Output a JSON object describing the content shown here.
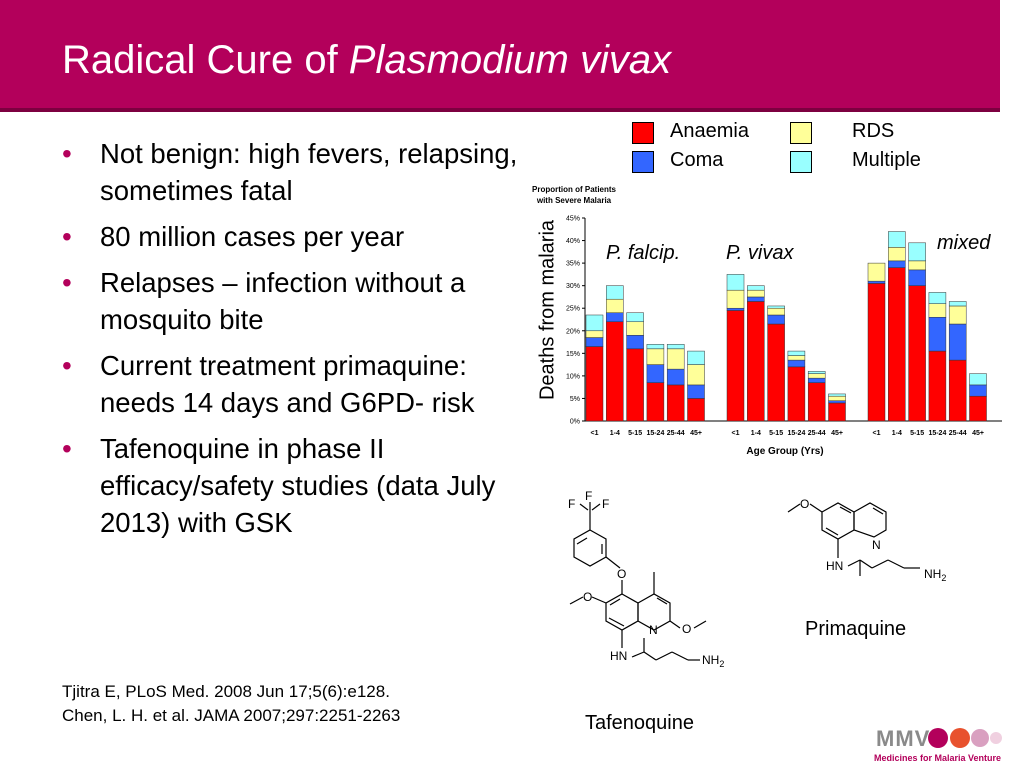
{
  "slide": {
    "title_plain": "Radical Cure of ",
    "title_italic": "Plasmodium vivax"
  },
  "bullets": [
    "Not benign: high fevers, relapsing, sometimes fatal",
    "80 million cases per year",
    "Relapses – infection without a mosquito bite",
    "Current treatment primaquine: needs 14 days and G6PD- risk",
    "Tafenoquine in phase II efficacy/safety studies (data July 2013) with GSK"
  ],
  "references": [
    "Tjitra E, PLoS Med. 2008 Jun 17;5(6):e128.",
    "Chen, L. H. et al. JAMA 2007;297:2251-2263"
  ],
  "legend": [
    {
      "label": "Anaemia",
      "color": "#ff0000"
    },
    {
      "label": "RDS",
      "color": "#ffff99"
    },
    {
      "label": "Coma",
      "color": "#3366ff"
    },
    {
      "label": "Multiple",
      "color": "#99ffff"
    }
  ],
  "chart_side_label": "Deaths from malaria",
  "chart_data": {
    "type": "bar",
    "stacked": true,
    "title": "Proportion of Patients with Severe Malaria",
    "xlabel": "Age Group (Yrs)",
    "ylabel": "",
    "ylim": [
      0,
      45
    ],
    "yticks": [
      "0%",
      "5%",
      "10%",
      "15%",
      "20%",
      "25%",
      "30%",
      "35%",
      "40%",
      "45%"
    ],
    "grid": false,
    "categories": [
      "<1",
      "1-4",
      "5-15",
      "15-24",
      "25-44",
      "45+"
    ],
    "groups": [
      {
        "name": "P. falcip.",
        "series": [
          {
            "name": "Anaemia",
            "values": [
              16.5,
              22,
              16,
              8.5,
              8,
              5
            ]
          },
          {
            "name": "Coma",
            "values": [
              2,
              2,
              3,
              4,
              3.5,
              3
            ]
          },
          {
            "name": "RDS",
            "values": [
              1.5,
              3,
              3,
              3.5,
              4.5,
              4.5
            ]
          },
          {
            "name": "Multiple",
            "values": [
              3.5,
              3,
              2,
              1,
              1,
              3
            ]
          }
        ]
      },
      {
        "name": "P. vivax",
        "series": [
          {
            "name": "Anaemia",
            "values": [
              24.5,
              26.5,
              21.5,
              12,
              8.5,
              4
            ]
          },
          {
            "name": "Coma",
            "values": [
              0.5,
              1,
              2,
              1.5,
              1,
              0.5
            ]
          },
          {
            "name": "RDS",
            "values": [
              4,
              1.5,
              1.5,
              1,
              1,
              1
            ]
          },
          {
            "name": "Multiple",
            "values": [
              3.5,
              1,
              0.5,
              1,
              0.5,
              0.5
            ]
          }
        ]
      },
      {
        "name": "mixed",
        "series": [
          {
            "name": "Anaemia",
            "values": [
              30.5,
              34,
              30,
              15.5,
              13.5,
              5.5
            ]
          },
          {
            "name": "Coma",
            "values": [
              0.5,
              1.5,
              3.5,
              7.5,
              8,
              2.5
            ]
          },
          {
            "name": "RDS",
            "values": [
              4,
              3,
              2,
              3,
              4,
              0
            ]
          },
          {
            "name": "Multiple",
            "values": [
              0,
              3.5,
              4,
              2.5,
              1,
              2.5
            ]
          }
        ]
      }
    ]
  },
  "molecules": {
    "tafenoquine": {
      "name": "Tafenoquine",
      "atoms": {
        "f1": "F",
        "f2": "F",
        "f3": "F",
        "o1": "O",
        "o2": "O",
        "o3": "O",
        "n1": "N",
        "hn": "HN",
        "nh2": "NH",
        "sub2": "2"
      }
    },
    "primaquine": {
      "name": "Primaquine",
      "atoms": {
        "o1": "O",
        "n1": "N",
        "hn": "HN",
        "nh2": "NH",
        "sub2": "2"
      }
    }
  },
  "logo": {
    "text": "MMV",
    "tagline": "Medicines for Malaria Venture",
    "colors": [
      "#b3005b",
      "#e8522e",
      "#d9a0c0",
      "#f0d0e0"
    ]
  }
}
